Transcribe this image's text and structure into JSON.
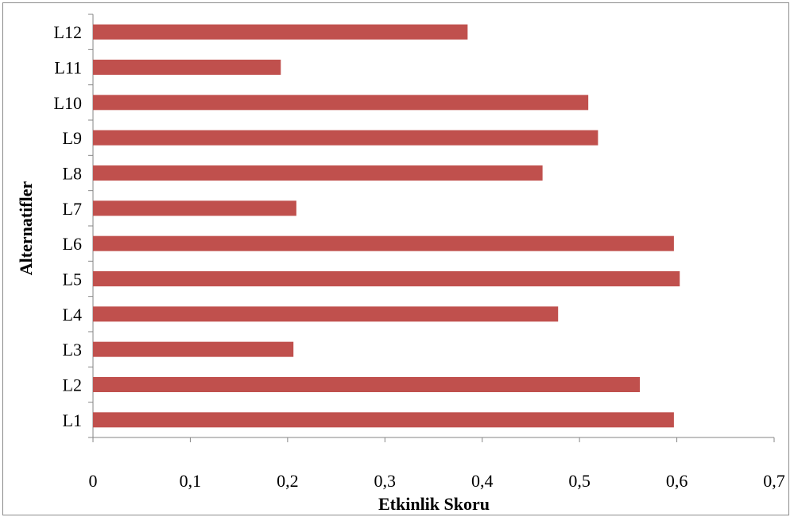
{
  "chart_data": {
    "type": "bar",
    "orientation": "horizontal",
    "categories": [
      "L1",
      "L2",
      "L3",
      "L4",
      "L5",
      "L6",
      "L7",
      "L8",
      "L9",
      "L10",
      "L11",
      "L12"
    ],
    "values": [
      0.597,
      0.562,
      0.206,
      0.478,
      0.603,
      0.597,
      0.209,
      0.462,
      0.519,
      0.509,
      0.193,
      0.385
    ],
    "xlabel": "Etkinlik Skoru",
    "ylabel": "Alternatifler",
    "xlim": [
      0,
      0.7
    ],
    "xticks": [
      "0",
      "0,1",
      "0,2",
      "0,3",
      "0,4",
      "0,5",
      "0,6",
      "0,7"
    ],
    "grid": false,
    "legend": "none",
    "bar_color": "#c0504d"
  }
}
